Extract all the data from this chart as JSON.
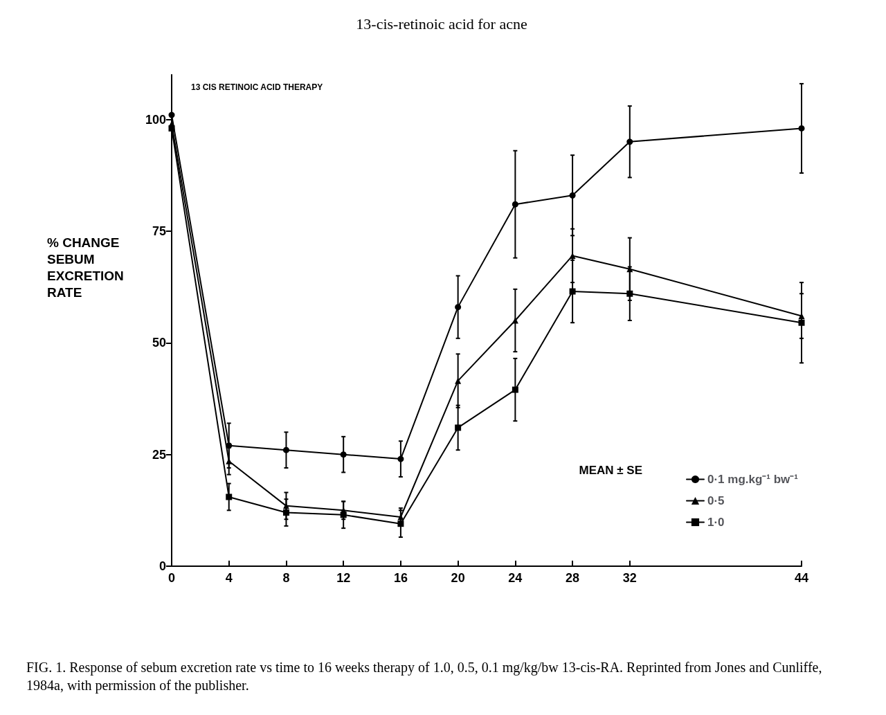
{
  "chart_data": {
    "type": "line",
    "title": "13-cis-retinoic acid for acne",
    "ylabel": "% CHANGE SEBUM EXCRETION RATE",
    "legend_title": "MEAN ± SE",
    "annotations": [
      "13 CIS RETINOIC ACID THERAPY",
      "FIG. 1. Response of sebum excretion rate vs time to 16 weeks therapy of 1.0, 0.5, 0.1 mg/kg/bw 13-cis-RA. Reprinted from Jones and Cunliffe, 1984a, with permission of the publisher."
    ],
    "x": [
      0,
      4,
      8,
      12,
      16,
      20,
      24,
      28,
      32,
      44
    ],
    "series": [
      {
        "name": "0·1 mg.kg⁻¹ bw⁻¹",
        "color": "#000000",
        "marker": "circle",
        "values": [
          101,
          27,
          26,
          25,
          24,
          58,
          81,
          83,
          95,
          98
        ],
        "errors": [
          null,
          5,
          4,
          4,
          4,
          7,
          12,
          9,
          8,
          10
        ]
      },
      {
        "name": "0·5",
        "color": "#000000",
        "marker": "triangle",
        "values": [
          99,
          23.5,
          13.5,
          12.5,
          11,
          41.5,
          55,
          69.5,
          66.5,
          56
        ],
        "errors": [
          null,
          3,
          3,
          2,
          2,
          6,
          7,
          6,
          7,
          5
        ]
      },
      {
        "name": "1·0",
        "color": "#000000",
        "marker": "square",
        "values": [
          98,
          15.5,
          12,
          11.5,
          9.5,
          31,
          39.5,
          61.5,
          61,
          54.5
        ],
        "errors": [
          null,
          3,
          3,
          3,
          3,
          5,
          7,
          7,
          6,
          9
        ]
      }
    ],
    "xlim": [
      0,
      44
    ],
    "xticks": [
      0,
      4,
      8,
      12,
      16,
      20,
      24,
      28,
      32,
      44
    ],
    "ylim": [
      0,
      110
    ],
    "yticks": [
      0,
      25,
      50,
      75,
      100
    ],
    "grid": false,
    "legend": "bottom right",
    "line_style": "solid"
  }
}
